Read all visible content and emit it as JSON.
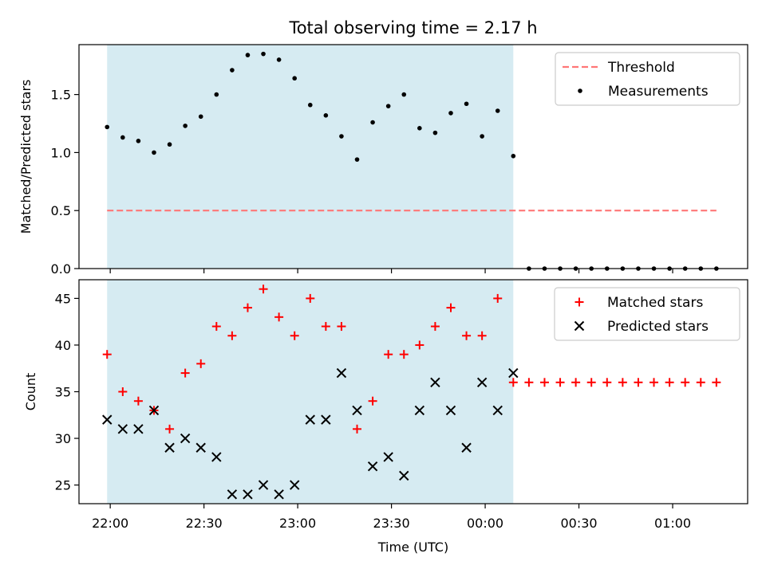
{
  "title": "Total observing time = 2.17 h",
  "chart_data": [
    {
      "type": "scatter",
      "ylabel": "Matched/Predicted stars",
      "ylim": [
        0,
        1.93
      ],
      "yticks": [
        "0.0",
        "0.5",
        "1.0",
        "1.5"
      ],
      "ytick_values": [
        0,
        0.5,
        1.0,
        1.5
      ],
      "threshold": {
        "name": "Threshold",
        "value": 0.5,
        "x_range": [
          "21:59",
          "01:14"
        ],
        "color": "#ff7777"
      },
      "series": [
        {
          "name": "Measurements",
          "color": "#000000",
          "x": [
            "21:59",
            "22:04",
            "22:09",
            "22:14",
            "22:19",
            "22:24",
            "22:29",
            "22:34",
            "22:39",
            "22:44",
            "22:49",
            "22:54",
            "22:59",
            "23:04",
            "23:09",
            "23:14",
            "23:19",
            "23:24",
            "23:29",
            "23:34",
            "23:39",
            "23:44",
            "23:49",
            "23:54",
            "23:59",
            "00:04",
            "00:09",
            "00:14",
            "00:19",
            "00:24",
            "00:29",
            "00:34",
            "00:39",
            "00:44",
            "00:49",
            "00:54",
            "00:59",
            "01:04",
            "01:09",
            "01:14"
          ],
          "y": [
            1.22,
            1.13,
            1.1,
            1.0,
            1.07,
            1.23,
            1.31,
            1.5,
            1.71,
            1.84,
            1.85,
            1.8,
            1.64,
            1.41,
            1.32,
            1.14,
            0.94,
            1.26,
            1.4,
            1.5,
            1.21,
            1.17,
            1.34,
            1.42,
            1.14,
            1.36,
            0.97,
            0,
            0,
            0,
            0,
            0,
            0,
            0,
            0,
            0,
            0,
            0,
            0,
            0
          ]
        }
      ],
      "legend_position": "top-right"
    },
    {
      "type": "scatter",
      "xlabel": "Time (UTC)",
      "ylabel": "Count",
      "ylim": [
        23,
        47
      ],
      "yticks": [
        "25",
        "30",
        "35",
        "40",
        "45"
      ],
      "ytick_values": [
        25,
        30,
        35,
        40,
        45
      ],
      "xticks": [
        "22:00",
        "22:30",
        "23:00",
        "23:30",
        "00:00",
        "00:30",
        "01:00"
      ],
      "xtick_values": [
        "22:00",
        "22:30",
        "23:00",
        "23:30",
        "00:00",
        "00:30",
        "01:00"
      ],
      "series": [
        {
          "name": "Matched stars",
          "marker": "plus",
          "color": "#ff0000",
          "x": [
            "21:59",
            "22:04",
            "22:09",
            "22:14",
            "22:19",
            "22:24",
            "22:29",
            "22:34",
            "22:39",
            "22:44",
            "22:49",
            "22:54",
            "22:59",
            "23:04",
            "23:09",
            "23:14",
            "23:19",
            "23:24",
            "23:29",
            "23:34",
            "23:39",
            "23:44",
            "23:49",
            "23:54",
            "23:59",
            "00:04",
            "00:09",
            "00:14",
            "00:19",
            "00:24",
            "00:29",
            "00:34",
            "00:39",
            "00:44",
            "00:49",
            "00:54",
            "00:59",
            "01:04",
            "01:09",
            "01:14"
          ],
          "y": [
            39,
            35,
            34,
            33,
            31,
            37,
            38,
            42,
            41,
            44,
            46,
            43,
            41,
            45,
            42,
            42,
            31,
            34,
            39,
            39,
            40,
            42,
            44,
            41,
            41,
            45,
            36,
            36,
            36,
            36,
            36,
            36,
            36,
            36,
            36,
            36,
            36,
            36,
            36,
            36
          ]
        },
        {
          "name": "Predicted stars",
          "marker": "x",
          "color": "#000000",
          "x": [
            "21:59",
            "22:04",
            "22:09",
            "22:14",
            "22:19",
            "22:24",
            "22:29",
            "22:34",
            "22:39",
            "22:44",
            "22:49",
            "22:54",
            "22:59",
            "23:04",
            "23:09",
            "23:14",
            "23:19",
            "23:24",
            "23:29",
            "23:34",
            "23:39",
            "23:44",
            "23:49",
            "23:54",
            "23:59",
            "00:04",
            "00:09"
          ],
          "y": [
            32,
            31,
            31,
            33,
            29,
            30,
            29,
            28,
            24,
            24,
            25,
            24,
            25,
            32,
            32,
            37,
            33,
            27,
            28,
            26,
            33,
            36,
            33,
            29,
            36,
            33,
            37
          ]
        }
      ],
      "legend_position": "top-right"
    }
  ],
  "shaded_span": {
    "start": "21:59",
    "end": "00:09",
    "color": "#add8e6"
  },
  "time_axis": {
    "min": "21:50",
    "max": "01:24"
  }
}
